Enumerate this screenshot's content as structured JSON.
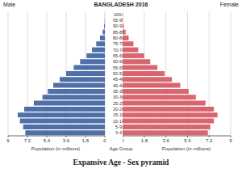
{
  "chart_data": {
    "type": "bar",
    "orientation": "horizontal",
    "title": "BANGLADESH 2016",
    "x_label": "Population (in millions)",
    "y_label": "Age Group",
    "caption": "Expansive Age - Sex pyramid",
    "categories": [
      "0-4",
      "5-9",
      "10-14",
      "15-19",
      "20-24",
      "25-29",
      "30-34",
      "35-39",
      "40-44",
      "45-49",
      "50-54",
      "55-59",
      "60-64",
      "65-69",
      "70-74",
      "75-79",
      "80-84",
      "85-89",
      "90-94",
      "95-99",
      "100+"
    ],
    "series": [
      {
        "name": "Male",
        "color": "#4f6fa8",
        "values": [
          7.4,
          7.6,
          7.9,
          8.1,
          7.5,
          6.6,
          5.8,
          5.3,
          4.8,
          4.2,
          3.6,
          2.9,
          2.3,
          1.7,
          1.2,
          0.8,
          0.45,
          0.2,
          0.07,
          0.02,
          0.005
        ]
      },
      {
        "name": "Female",
        "color": "#d9666f",
        "values": [
          7.1,
          7.3,
          7.6,
          7.9,
          7.6,
          6.9,
          6.1,
          5.5,
          4.8,
          4.1,
          3.5,
          2.9,
          2.3,
          1.8,
          1.3,
          0.9,
          0.5,
          0.25,
          0.09,
          0.03,
          0.01
        ]
      }
    ],
    "xlim": [
      0,
      9
    ],
    "xticks": [
      0,
      1.8,
      3.6,
      5.4,
      7.2,
      9
    ],
    "grid": true
  }
}
